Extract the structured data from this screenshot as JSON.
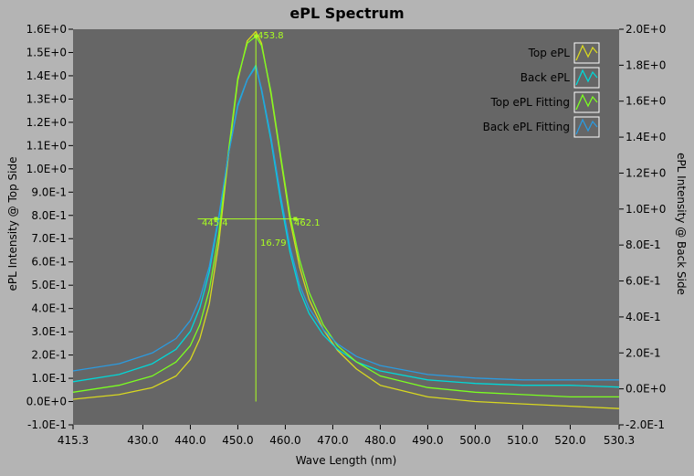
{
  "chart_data": {
    "type": "line",
    "title": "ePL Spectrum",
    "xlabel": "Wave Length (nm)",
    "ylabel_left": "ePL Intensity @ Top Side",
    "ylabel_right": "ePL Intensity @ Back Side",
    "xlim": [
      415.3,
      530.3
    ],
    "ylim_left": [
      -0.1,
      1.6
    ],
    "ylim_right": [
      -0.2,
      2.0
    ],
    "x_ticks": [
      "415.3",
      "430.0",
      "440.0",
      "450.0",
      "460.0",
      "470.0",
      "480.0",
      "490.0",
      "500.0",
      "510.0",
      "520.0",
      "530.3"
    ],
    "y_ticks_left": [
      "1.6E+0",
      "1.5E+0",
      "1.4E+0",
      "1.3E+0",
      "1.2E+0",
      "1.1E+0",
      "1.0E+0",
      "9.0E-1",
      "8.0E-1",
      "7.0E-1",
      "6.0E-1",
      "5.0E-1",
      "4.0E-1",
      "3.0E-1",
      "2.0E-1",
      "1.0E-1",
      "0.0E+0",
      "-1.0E-1"
    ],
    "y_ticks_right": [
      "2.0E+0",
      "1.8E+0",
      "1.6E+0",
      "1.4E+0",
      "1.2E+0",
      "1.0E+0",
      "8.0E-1",
      "6.0E-1",
      "4.0E-1",
      "2.0E-1",
      "0.0E+0",
      "-2.0E-1"
    ],
    "grid": false,
    "legend_position": "top-right",
    "colors": {
      "page_bg": "#b4b4b4",
      "plot_bg": "#666666",
      "marker": "#aaff22"
    },
    "series": [
      {
        "name": "Top ePL",
        "axis": "left",
        "color": "#d8d820",
        "x": [
          415.3,
          425,
          432,
          437,
          440,
          442,
          444,
          446,
          448,
          450,
          452,
          453.8,
          455,
          457,
          459,
          461,
          463,
          465,
          468,
          471,
          475,
          480,
          490,
          500,
          510,
          520,
          530.3
        ],
        "y": [
          0.01,
          0.03,
          0.06,
          0.11,
          0.18,
          0.27,
          0.42,
          0.68,
          1.05,
          1.38,
          1.55,
          1.59,
          1.54,
          1.32,
          1.05,
          0.78,
          0.58,
          0.44,
          0.31,
          0.22,
          0.14,
          0.07,
          0.02,
          0.0,
          -0.01,
          -0.02,
          -0.03
        ]
      },
      {
        "name": "Back ePL",
        "axis": "right",
        "color": "#00d8d8",
        "x": [
          415.3,
          425,
          432,
          437,
          440,
          442,
          444,
          446,
          448,
          450,
          452,
          453.8,
          455,
          457,
          459,
          461,
          463,
          465,
          468,
          471,
          475,
          480,
          490,
          500,
          510,
          520,
          530.3
        ],
        "y": [
          0.04,
          0.08,
          0.14,
          0.22,
          0.32,
          0.45,
          0.65,
          0.95,
          1.3,
          1.58,
          1.72,
          1.8,
          1.66,
          1.38,
          1.05,
          0.76,
          0.55,
          0.42,
          0.3,
          0.22,
          0.15,
          0.1,
          0.05,
          0.03,
          0.02,
          0.02,
          0.01
        ]
      },
      {
        "name": "Top ePL Fitting",
        "axis": "left",
        "color": "#7cff20",
        "x": [
          415.3,
          425,
          432,
          437,
          440,
          442,
          444,
          446,
          448,
          450,
          452,
          453.8,
          455,
          457,
          459,
          461,
          463,
          465,
          468,
          471,
          475,
          480,
          490,
          500,
          510,
          520,
          530.3
        ],
        "y": [
          0.04,
          0.07,
          0.11,
          0.17,
          0.24,
          0.33,
          0.48,
          0.72,
          1.07,
          1.39,
          1.54,
          1.57,
          1.53,
          1.33,
          1.06,
          0.8,
          0.61,
          0.47,
          0.33,
          0.24,
          0.17,
          0.11,
          0.06,
          0.04,
          0.03,
          0.02,
          0.02
        ]
      },
      {
        "name": "Back ePL Fitting",
        "axis": "right",
        "color": "#2b9be0",
        "x": [
          415.3,
          425,
          432,
          437,
          440,
          442,
          444,
          446,
          448,
          450,
          452,
          453.8,
          455,
          457,
          459,
          461,
          463,
          465,
          468,
          471,
          475,
          480,
          490,
          500,
          510,
          520,
          530.3
        ],
        "y": [
          0.1,
          0.14,
          0.2,
          0.28,
          0.38,
          0.5,
          0.68,
          0.96,
          1.3,
          1.57,
          1.72,
          1.79,
          1.67,
          1.4,
          1.08,
          0.79,
          0.58,
          0.45,
          0.33,
          0.25,
          0.18,
          0.13,
          0.08,
          0.06,
          0.05,
          0.05,
          0.05
        ]
      }
    ],
    "annotations": {
      "peak": "453.8",
      "fwhm_left": "445.4",
      "fwhm_right": "462.1",
      "fwhm": "16.79"
    },
    "markers": {
      "peak_x": 453.8,
      "peak_y": 1.57,
      "fwhm_left_x": 445.4,
      "fwhm_right_x": 462.1,
      "half_max_y": 0.785
    }
  }
}
